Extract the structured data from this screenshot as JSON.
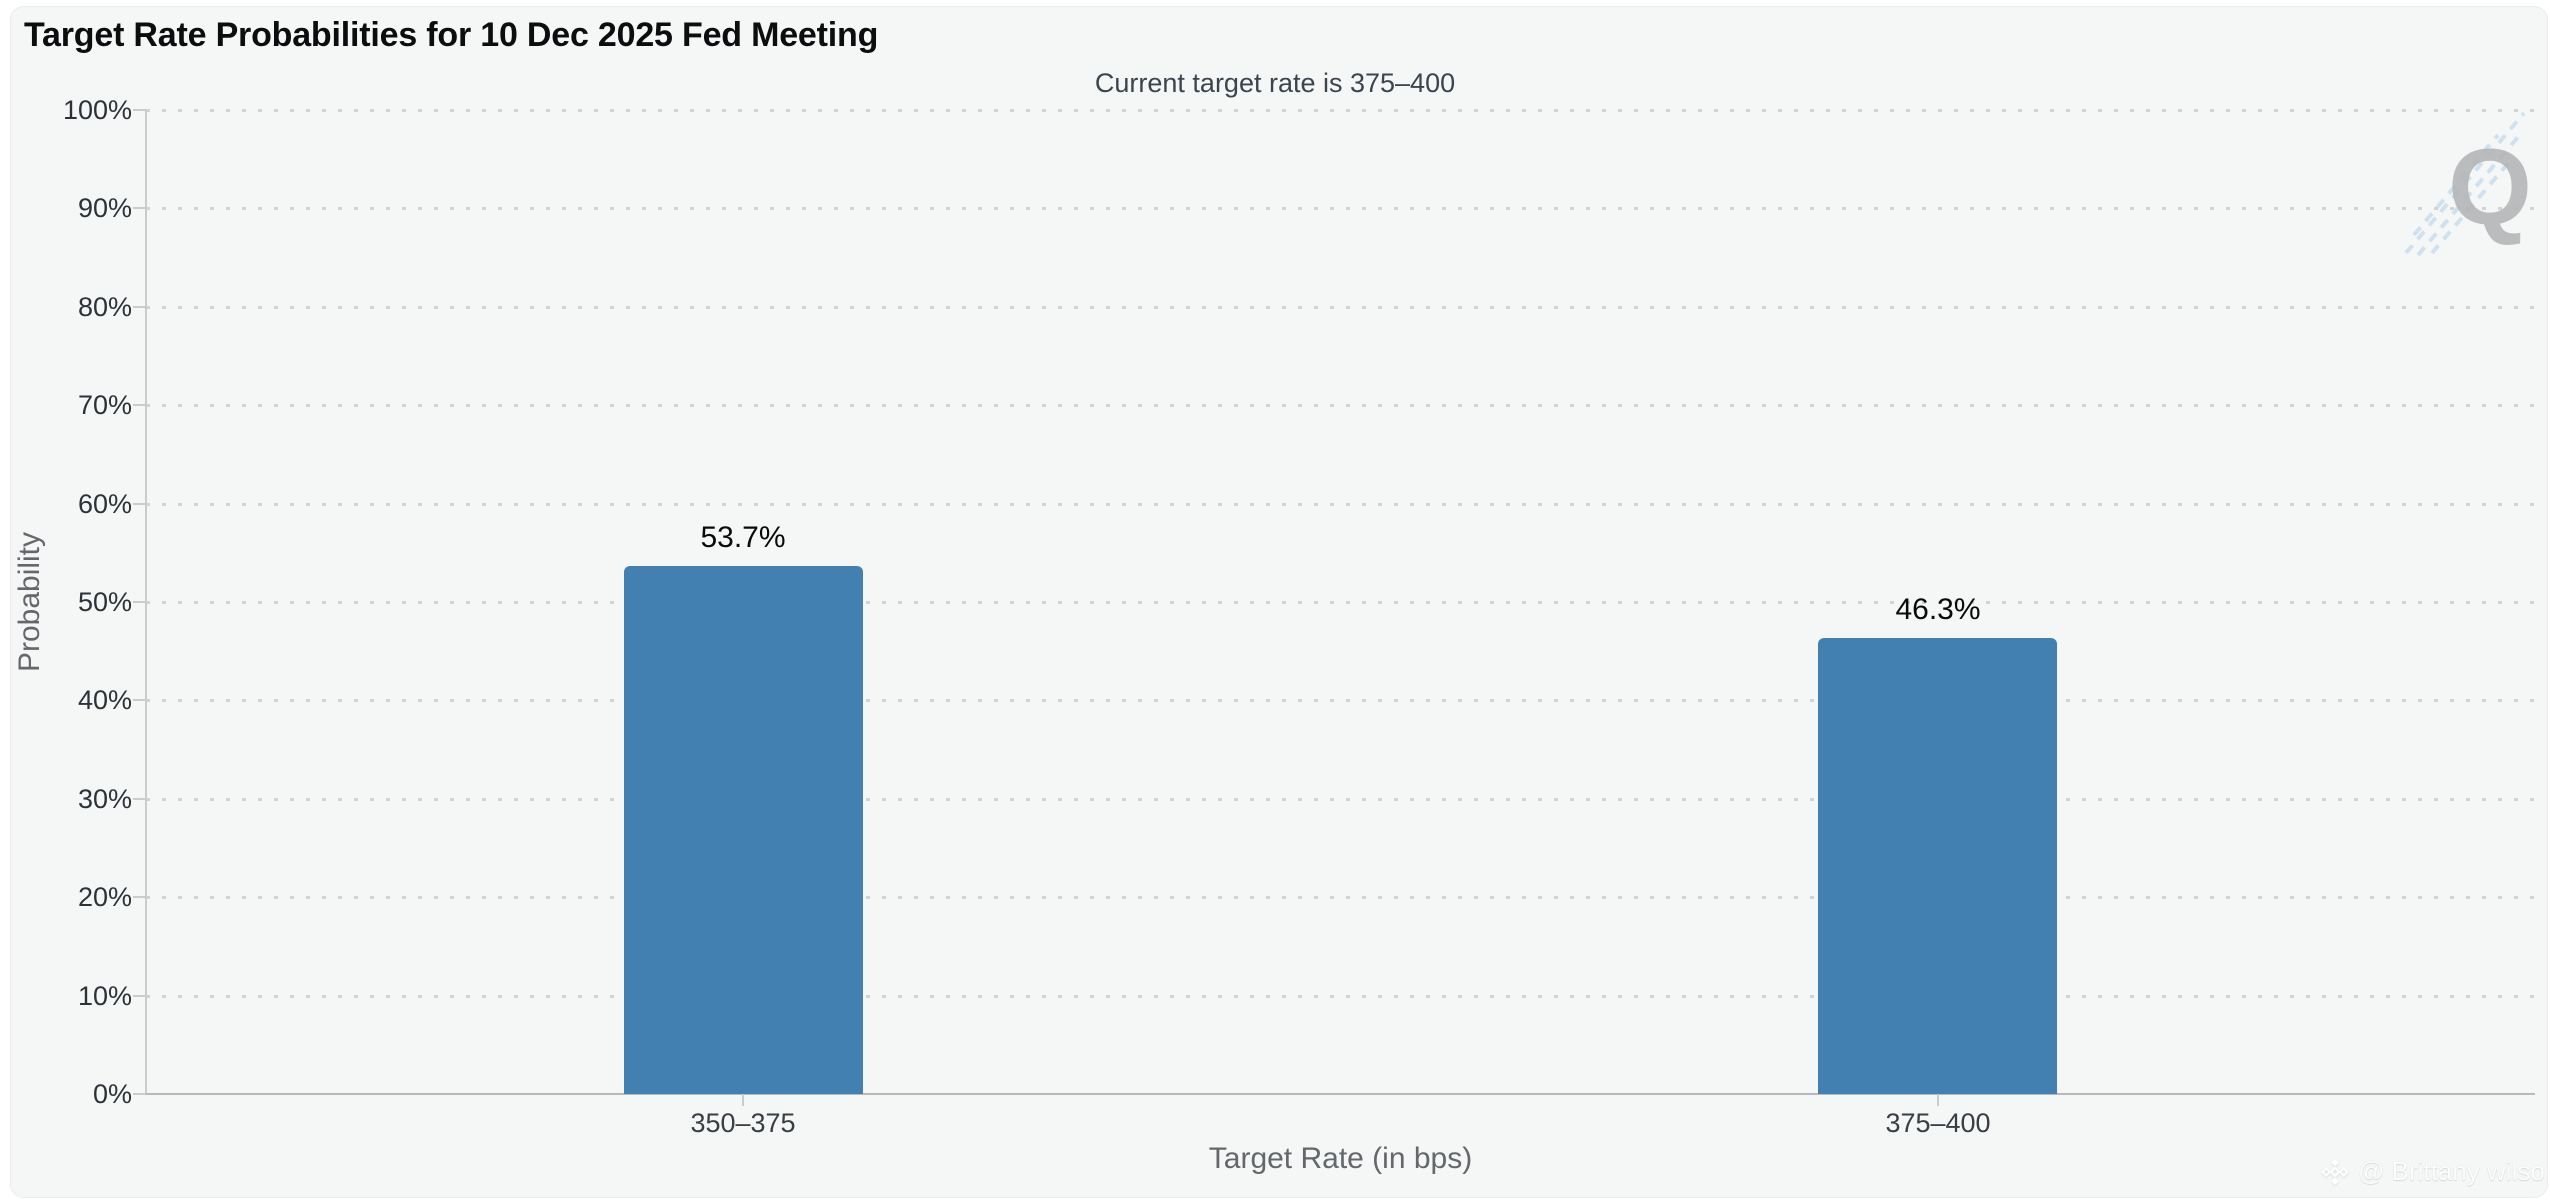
{
  "chart_data": {
    "type": "bar",
    "title": "Target Rate Probabilities for 10 Dec 2025 Fed Meeting",
    "subtitle": "Current target rate is 375–400",
    "xlabel": "Target Rate (in bps)",
    "ylabel": "Probability",
    "categories": [
      "350–375",
      "375–400"
    ],
    "values": [
      53.7,
      46.3
    ],
    "value_labels": [
      "53.7%",
      "46.3%"
    ],
    "ylim": [
      0,
      100
    ],
    "y_ticks": [
      "100%",
      "90%",
      "80%",
      "70%",
      "60%",
      "50%",
      "40%",
      "30%",
      "20%",
      "10%",
      "0%"
    ],
    "grid": "dotted-horizontal",
    "legend": "none",
    "bar_color": "#4380B2"
  },
  "watermarks": {
    "logo_letter": "Q",
    "credit": "@ Brittany wilso"
  },
  "colors": {
    "background": "#f5f6f6",
    "bar": "#4380B2",
    "grid_dots": "#d2d3d4",
    "axis_line": "#b7b9bb",
    "tick_text": "#2c3237",
    "axis_title_text": "#64676b"
  }
}
